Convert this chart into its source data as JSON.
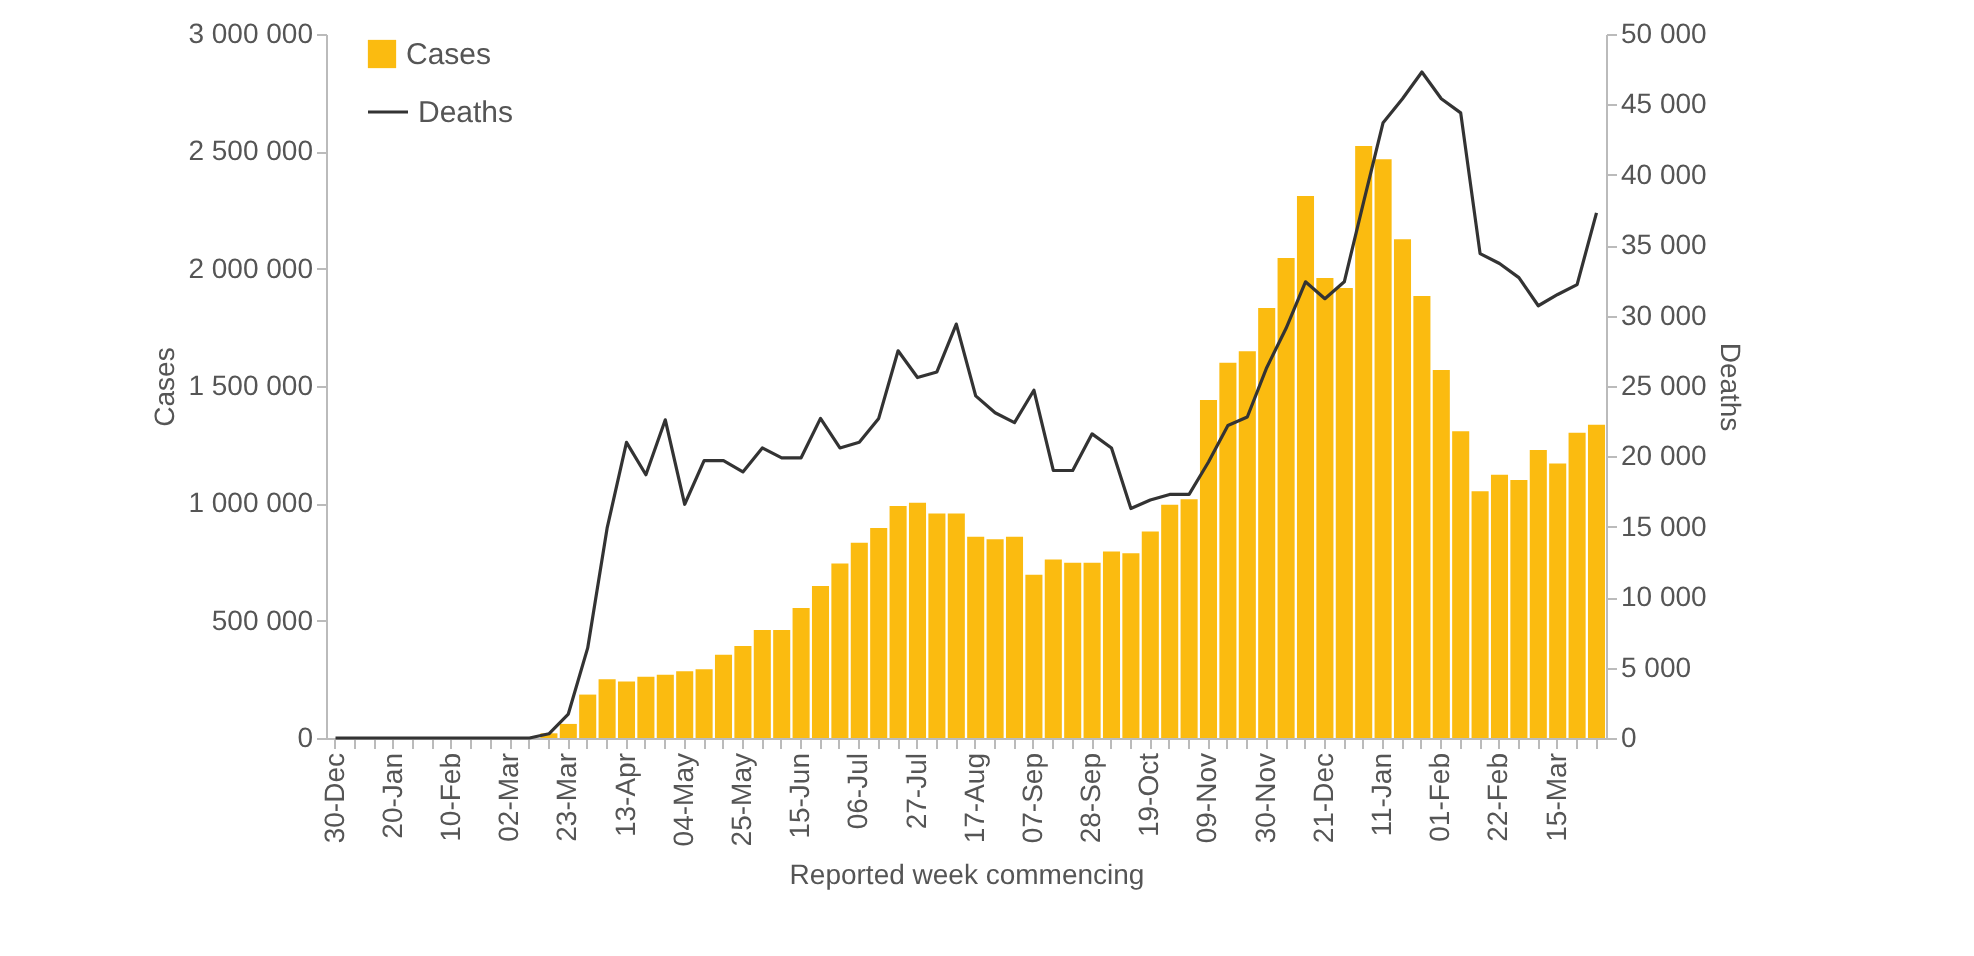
{
  "chart_data": {
    "type": "bar",
    "xlabel": "Reported week commencing",
    "ylabel": "Cases",
    "y2label": "Deaths",
    "categories": [
      "30-Dec",
      null,
      null,
      "20-Jan",
      null,
      null,
      "10-Feb",
      null,
      null,
      "02-Mar",
      null,
      null,
      "23-Mar",
      null,
      null,
      "13-Apr",
      null,
      null,
      "04-May",
      null,
      null,
      "25-May",
      null,
      null,
      "15-Jun",
      null,
      null,
      "06-Jul",
      null,
      null,
      "27-Jul",
      null,
      null,
      "17-Aug",
      null,
      null,
      "07-Sep",
      null,
      null,
      "28-Sep",
      null,
      null,
      "19-Oct",
      null,
      null,
      "09-Nov",
      null,
      null,
      "30-Nov",
      null,
      null,
      "21-Dec",
      null,
      null,
      "11-Jan",
      null,
      null,
      "01-Feb",
      null,
      null,
      "22-Feb",
      null,
      null,
      "15-Mar",
      null,
      null
    ],
    "series": [
      {
        "name": "Cases",
        "color": "#fbbb10",
        "values": [
          0,
          0,
          0,
          0,
          0,
          0,
          0,
          0,
          0,
          0,
          0,
          20000,
          60000,
          185000,
          250000,
          241000,
          261000,
          270000,
          284000,
          293000,
          355000,
          392000,
          460000,
          460000,
          554000,
          648000,
          744000,
          832000,
          895000,
          989000,
          1003000,
          957000,
          957000,
          858000,
          847000,
          858000,
          696000,
          761000,
          747000,
          747000,
          795000,
          787000,
          880000,
          994000,
          1017000,
          1440000,
          1599000,
          1648000,
          1832000,
          2045000,
          2310000,
          1960000,
          1918000,
          2523000,
          2466000,
          2125000,
          1884000,
          1568000,
          1307000,
          1051000,
          1122000,
          1099000,
          1227000,
          1170000,
          1301000,
          1335000
        ]
      },
      {
        "name": "Deaths",
        "type": "line",
        "axis": "y2",
        "color": "#333333",
        "values": [
          0,
          0,
          0,
          0,
          0,
          0,
          0,
          0,
          0,
          0,
          0,
          300,
          1700,
          6400,
          14900,
          21000,
          18700,
          22600,
          16600,
          19700,
          19700,
          18900,
          20600,
          19900,
          19900,
          22700,
          20600,
          21000,
          22700,
          27500,
          25600,
          26000,
          29400,
          24300,
          23100,
          22400,
          24700,
          19000,
          19000,
          21600,
          20600,
          16300,
          16900,
          17300,
          17300,
          19600,
          22200,
          22800,
          26300,
          29100,
          32400,
          31200,
          32400,
          38100,
          43700,
          45400,
          47300,
          45400,
          44400,
          34400,
          33700,
          32700,
          30700,
          31500,
          32200,
          37300
        ]
      }
    ],
    "ylim": [
      0,
      3000000
    ],
    "yticks": [
      0,
      {
        "value": 500000,
        "label": "500 000"
      },
      {
        "value": 1000000,
        "label": "1 000 000"
      },
      {
        "value": 1500000,
        "label": "1 500 000"
      },
      {
        "value": 2000000,
        "label": "2 000 000"
      },
      {
        "value": 2500000,
        "label": "2 500 000"
      },
      {
        "value": 3000000,
        "label": "3 000 000"
      }
    ],
    "y2lim": [
      0,
      50000
    ],
    "y2ticks": [
      0,
      {
        "value": 5000,
        "label": "5 000"
      },
      {
        "value": 10000,
        "label": "10 000"
      },
      {
        "value": 15000,
        "label": "15 000"
      },
      {
        "value": 20000,
        "label": "20 000"
      },
      {
        "value": 25000,
        "label": "25 000"
      },
      {
        "value": 30000,
        "label": "30 000"
      },
      {
        "value": 35000,
        "label": "35 000"
      },
      {
        "value": 40000,
        "label": "40 000"
      },
      {
        "value": 45000,
        "label": "45 000"
      },
      {
        "value": 50000,
        "label": "50 000"
      }
    ],
    "legend": "top left",
    "grid": false
  }
}
